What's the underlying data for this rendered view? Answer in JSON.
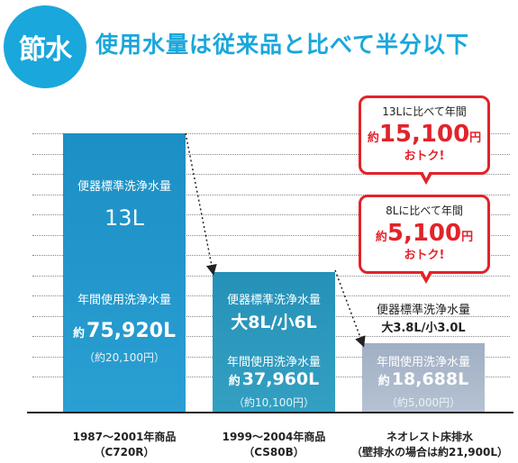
{
  "badge": "節水",
  "headline": "使用水量は従来品と比べて半分以下",
  "colors": {
    "accent": "#1aa7dc",
    "bar1": "#1c8fc4",
    "bar2": "#2591b8",
    "bar3": "#a9b7c9",
    "callout": "#e2232a"
  },
  "chart_data": {
    "type": "bar",
    "categories": [
      "1987〜2001年商品（C720R）",
      "1999〜2004年商品（CS80B）",
      "ネオレスト床排水（壁排水の場合は約21,900L）"
    ],
    "series": [
      {
        "name": "年間使用洗浄水量",
        "values": [
          75920,
          37960,
          18688
        ]
      }
    ],
    "ylim": [
      0,
      100000
    ],
    "grid": true
  },
  "bars": [
    {
      "cat_line1": "1987〜2001年商品",
      "cat_line2": "（C720R）",
      "std_label": "便器標準洗浄水量",
      "std_value": "13L",
      "annual_label": "年間使用洗浄水量",
      "annual_prefix": "約",
      "annual_value": "75,920L",
      "annual_cost": "（約20,100円）"
    },
    {
      "cat_line1": "1999〜2004年商品",
      "cat_line2": "（CS80B）",
      "std_label": "便器標準洗浄水量",
      "std_value": "大8L/小6L",
      "annual_label": "年間使用洗浄水量",
      "annual_prefix": "約",
      "annual_value": "37,960L",
      "annual_cost": "（約10,100円）"
    },
    {
      "cat_line1": "ネオレスト床排水",
      "cat_line2": "（壁排水の場合は約21,900L）",
      "std_label": "便器標準洗浄水量",
      "std_value": "大3.8L/小3.0L",
      "annual_label": "年間使用洗浄水量",
      "annual_prefix": "約",
      "annual_value": "18,688L",
      "annual_cost": "（約5,000円）"
    }
  ],
  "callouts": [
    {
      "line1": "13Lに比べて年間",
      "prefix": "約",
      "amount": "15,100",
      "unit": "円",
      "line3": "おトク!"
    },
    {
      "line1": "8Lに比べて年間",
      "prefix": "約",
      "amount": "5,100",
      "unit": "円",
      "line3": "おトク!"
    }
  ]
}
